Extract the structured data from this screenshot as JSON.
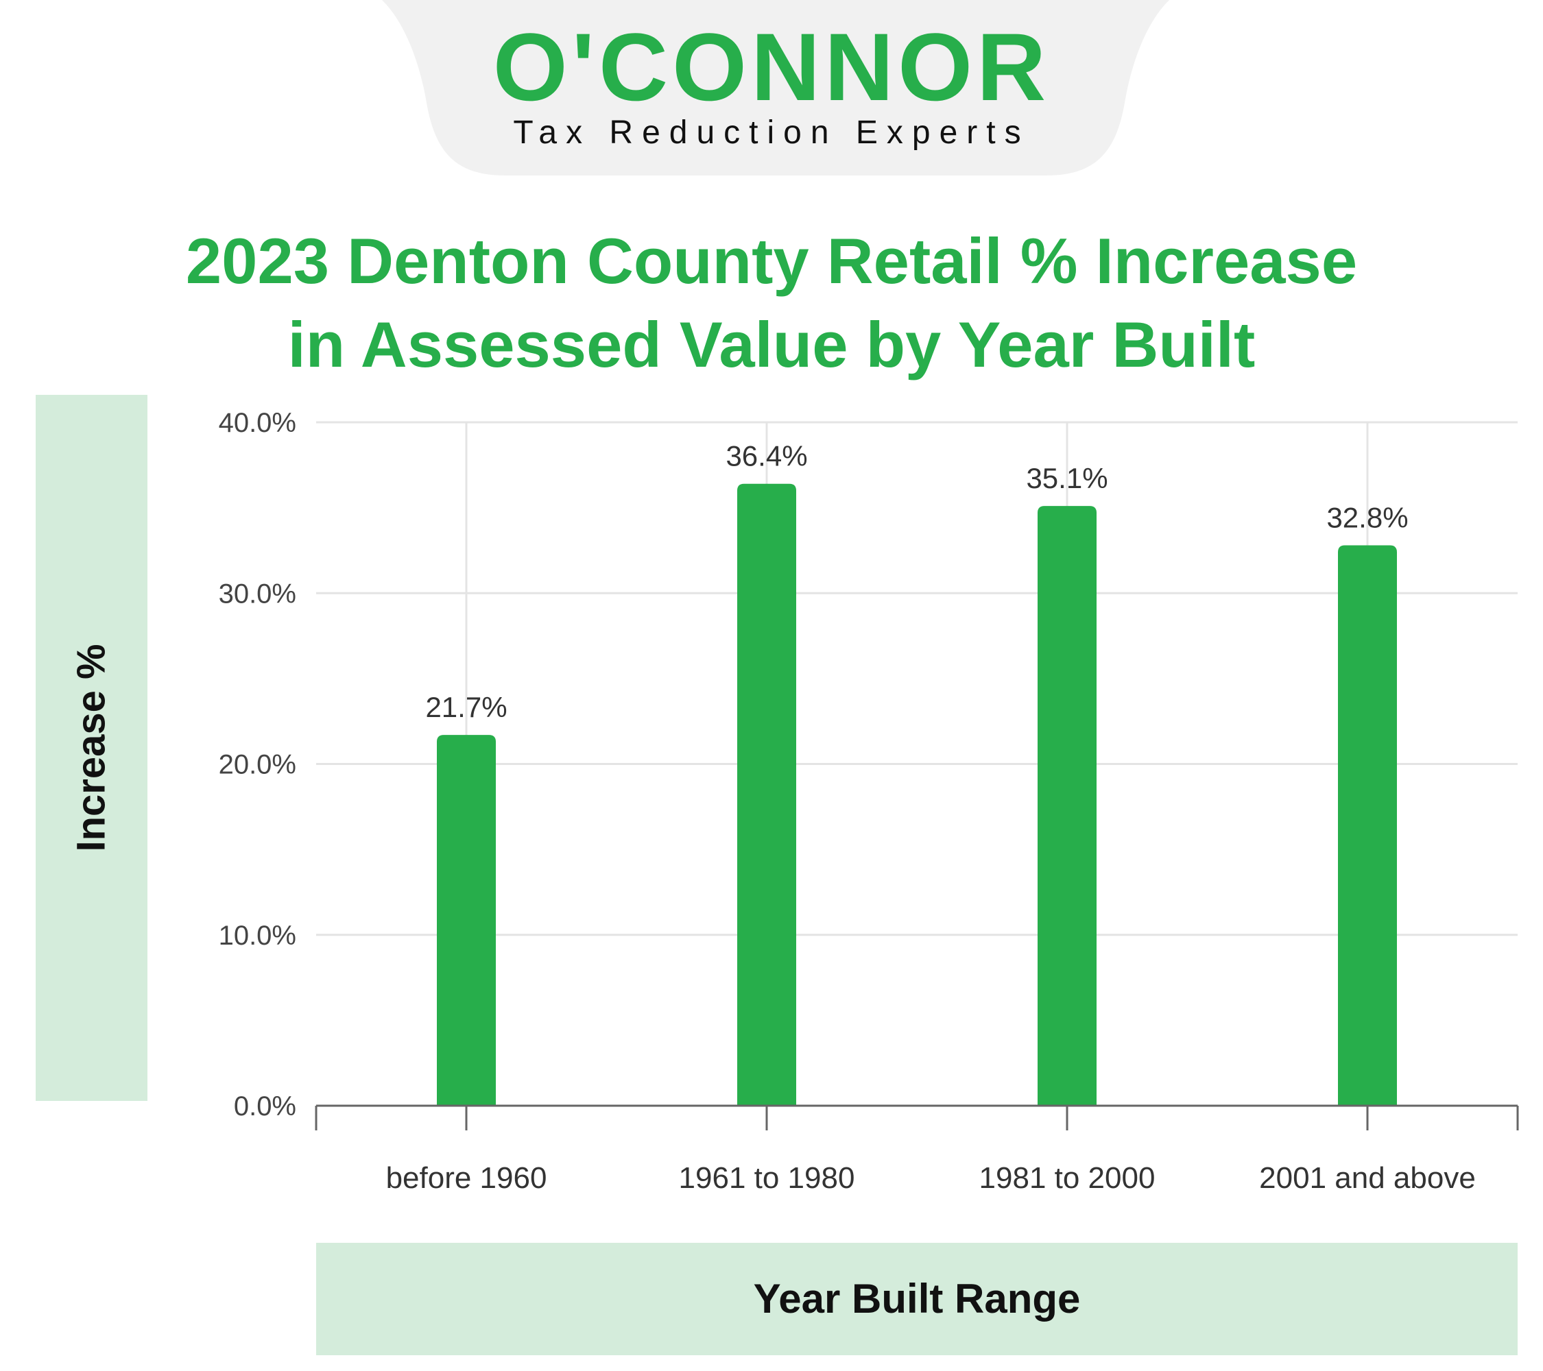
{
  "header": {
    "brand": "O'CONNOR",
    "tagline": "Tax Reduction Experts"
  },
  "colors": {
    "accent": "#27ae4b",
    "panel": "#d4ecdb",
    "header_bg": "#f1f1f1",
    "grid": "#e4e4e4",
    "axis": "#666666"
  },
  "chart_data": {
    "type": "bar",
    "title": "2023 Denton County Retail % Increase in Assessed Value by Year Built",
    "title_lines": [
      "2023 Denton County Retail % Increase",
      "in Assessed Value by Year Built"
    ],
    "xlabel": "Year Built Range",
    "ylabel": "Increase %",
    "categories": [
      "before 1960",
      "1961 to 1980",
      "1981 to 2000",
      "2001 and above"
    ],
    "values": [
      21.7,
      36.4,
      35.1,
      32.8
    ],
    "data_labels": [
      "21.7%",
      "36.4%",
      "35.1%",
      "32.8%"
    ],
    "ylim": [
      0,
      40
    ],
    "yticks": [
      0,
      10,
      20,
      30,
      40
    ],
    "ytick_labels": [
      "0.0%",
      "10.0%",
      "20.0%",
      "30.0%",
      "40.0%"
    ],
    "grid": true,
    "legend": "none",
    "bar_color": "#27ae4b"
  }
}
